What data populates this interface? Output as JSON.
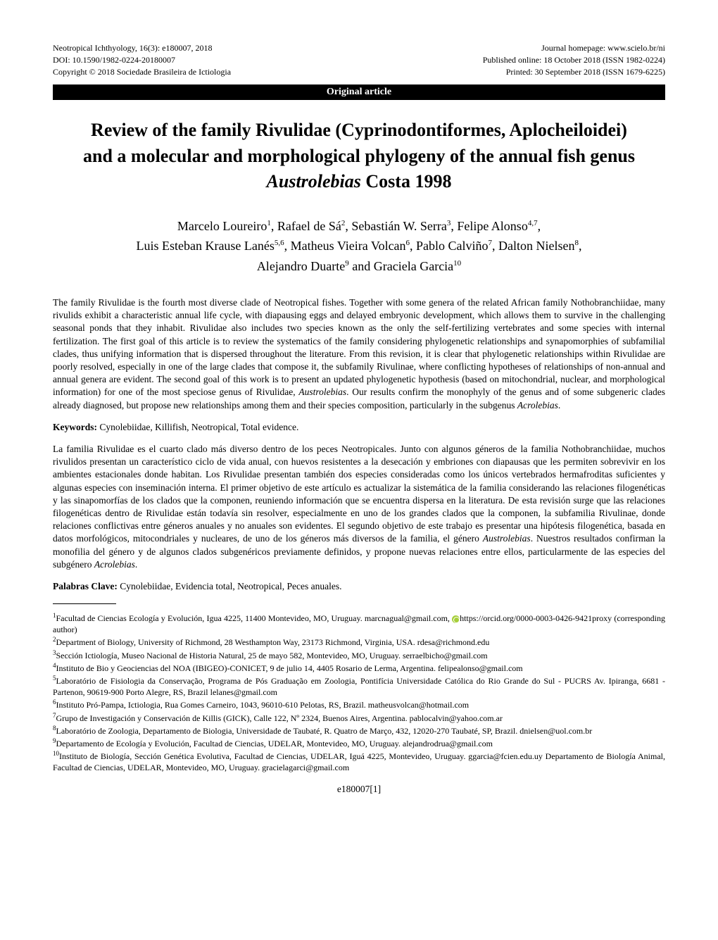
{
  "header": {
    "left": {
      "line1": "Neotropical Ichthyology, 16(3): e180007, 2018",
      "line2": "DOI: 10.1590/1982-0224-20180007",
      "line3": "Copyright © 2018 Sociedade Brasileira de Ictiologia"
    },
    "right": {
      "line1": "Journal homepage: www.scielo.br/ni",
      "line2": "Published online: 18 October 2018 (ISSN 1982-0224)",
      "line3": "Printed: 30 September 2018 (ISSN 1679-6225)"
    }
  },
  "banner": "Original article",
  "title": {
    "line1": "Review of the family Rivulidae (Cyprinodontiformes, Aplocheiloidei)",
    "line2": "and a molecular and morphological phylogeny of the annual fish genus",
    "line3_prefix": "",
    "line3_italic": "Austrolebias",
    "line3_suffix": " Costa 1998"
  },
  "authors": {
    "line1_a": "Marcelo Loureiro",
    "line1_a_sup": "1",
    "line1_b": ", Rafael de Sá",
    "line1_b_sup": "2",
    "line1_c": ", Sebastián W. Serra",
    "line1_c_sup": "3",
    "line1_d": ", Felipe Alonso",
    "line1_d_sup": "4,7",
    "line1_e": ",",
    "line2_a": "Luis Esteban Krause Lanés",
    "line2_a_sup": "5,6",
    "line2_b": ", Matheus Vieira Volcan",
    "line2_b_sup": "6",
    "line2_c": ", Pablo Calviño",
    "line2_c_sup": "7",
    "line2_d": ", Dalton Nielsen",
    "line2_d_sup": "8",
    "line2_e": ",",
    "line3_a": "Alejandro Duarte",
    "line3_a_sup": "9",
    "line3_b": " and Graciela Garcia",
    "line3_b_sup": "10"
  },
  "abstract_en": "The family Rivulidae is the fourth most diverse clade of Neotropical fishes. Together with some genera of the related African family Nothobranchiidae, many rivulids exhibit a characteristic annual life cycle, with diapausing eggs and delayed embryonic development, which allows them to survive in the challenging seasonal ponds that they inhabit. Rivulidae also includes two species known as the only the self-fertilizing vertebrates and some species with internal fertilization. The first goal of this article is to review the systematics of the family considering phylogenetic relationships and synapomorphies of subfamilial clades, thus unifying information that is dispersed throughout the literature. From this revision, it is clear that phylogenetic relationships within Rivulidae are poorly resolved, especially in one of the large clades that compose it, the subfamily Rivulinae, where conflicting hypotheses of relationships of non-annual and annual genera are evident. The second goal of this work is to present an updated phylogenetic hypothesis (based on mitochondrial, nuclear, and morphological information) for one of the most speciose genus of Rivulidae, ",
  "abstract_en_italic1": "Austrolebias",
  "abstract_en_mid": ". Our results confirm the monophyly of the genus and of some subgeneric clades already diagnosed, but propose new relationships among them and their species composition, particularly in the subgenus ",
  "abstract_en_italic2": "Acrolebias",
  "abstract_en_end": ".",
  "keywords_en_label": "Keywords: ",
  "keywords_en": "Cynolebiidae, Killifish, Neotropical, Total evidence.",
  "abstract_es": "La familia Rivulidae es el cuarto clado más diverso dentro de los peces Neotropicales. Junto con algunos géneros de la familia Nothobranchiidae, muchos rivulidos presentan un característico ciclo de vida anual, con huevos resistentes a la desecación y embriones con diapausas que les permiten sobrevivir en los ambientes estacionales donde habitan. Los Rivulidae presentan también dos especies consideradas como los únicos vertebrados hermafroditas suficientes y algunas especies con inseminación interna. El primer objetivo de este artículo es actualizar la sistemática de la familia considerando las relaciones filogenéticas y las sinapomorfías de los clados que la componen, reuniendo información que se encuentra dispersa en la literatura. De esta revisión surge que las relaciones filogenéticas dentro de Rivulidae están todavía sin resolver, especialmente en uno de los grandes clados que la componen, la subfamilia Rivulinae, donde relaciones conflictivas entre géneros anuales y no anuales son evidentes. El segundo objetivo de este trabajo es presentar una hipótesis filogenética, basada en datos morfológicos, mitocondriales y nucleares, de uno de los géneros más diversos de la familia, el género ",
  "abstract_es_italic1": "Austrolebias",
  "abstract_es_mid": ". Nuestros resultados confirman la monofilia del género y de algunos clados subgenéricos previamente definidos, y propone nuevas relaciones entre ellos, particularmente de las especies del subgénero ",
  "abstract_es_italic2": "Acrolebias",
  "abstract_es_end": ".",
  "keywords_es_label": "Palabras Clave: ",
  "keywords_es": "Cynolebiidae, Evidencia total, Neotropical, Peces anuales.",
  "affiliations": {
    "a1_sup": "1",
    "a1": "Facultad de Ciencias Ecología y Evolución, Igua 4225, 11400 Montevideo, MO, Uruguay. marcnagual@gmail.com, ",
    "a1_link": "https://orcid.org/0000-0003-0426-9421proxy (corresponding author)",
    "a2_sup": "2",
    "a2": "Department of Biology, University of Richmond, 28 Westhampton Way, 23173 Richmond, Virginia, USA. rdesa@richmond.edu",
    "a3_sup": "3",
    "a3": "Sección Ictiología, Museo Nacional de Historia Natural, 25 de mayo 582, Montevideo, MO, Uruguay. serraelbicho@gmail.com",
    "a4_sup": "4",
    "a4": "Instituto de Bio y Geociencias del NOA (IBIGEO)-CONICET, 9 de julio 14, 4405 Rosario de Lerma, Argentina. felipealonso@gmail.com",
    "a5_sup": "5",
    "a5": "Laboratório de Fisiologia da Conservação, Programa de Pós Graduação em Zoologia, Pontifícia Universidade Católica do Rio Grande do Sul - PUCRS Av. Ipiranga, 6681 - Partenon, 90619-900 Porto Alegre, RS, Brazil lelanes@gmail.com",
    "a6_sup": "6",
    "a6": "Instituto Pró-Pampa, Ictiologia, Rua Gomes Carneiro, 1043, 96010-610 Pelotas, RS, Brazil. matheusvolcan@hotmail.com",
    "a7_sup": "7",
    "a7": "Grupo de Investigación y Conservación de Killis (GICK), Calle 122, Nº 2324, Buenos Aires, Argentina. pablocalvin@yahoo.com.ar",
    "a8_sup": "8",
    "a8": "Laboratório de Zoologia, Departamento de Biologia, Universidade de Taubaté, R. Quatro de Março, 432, 12020-270 Taubaté, SP, Brazil. dnielsen@uol.com.br",
    "a9_sup": "9",
    "a9": "Departamento de Ecología y Evolución, Facultad de Ciencias, UDELAR, Montevideo, MO, Uruguay. alejandrodrua@gmail.com",
    "a10_sup": "10",
    "a10": "Instituto de Biología, Sección Genética Evolutiva, Facultad de Ciencias, UDELAR, Iguá 4225, Montevideo, Uruguay. ggarcia@fcien.edu.uy Departamento de Biología Animal, Facultad de Ciencias, UDELAR, Montevideo, MO, Uruguay. gracielagarci@gmail.com"
  },
  "footer": "e180007[1]",
  "colors": {
    "banner_bg": "#000000",
    "banner_text": "#ffffff",
    "text": "#000000",
    "orcid_bg": "#a6ce39"
  }
}
